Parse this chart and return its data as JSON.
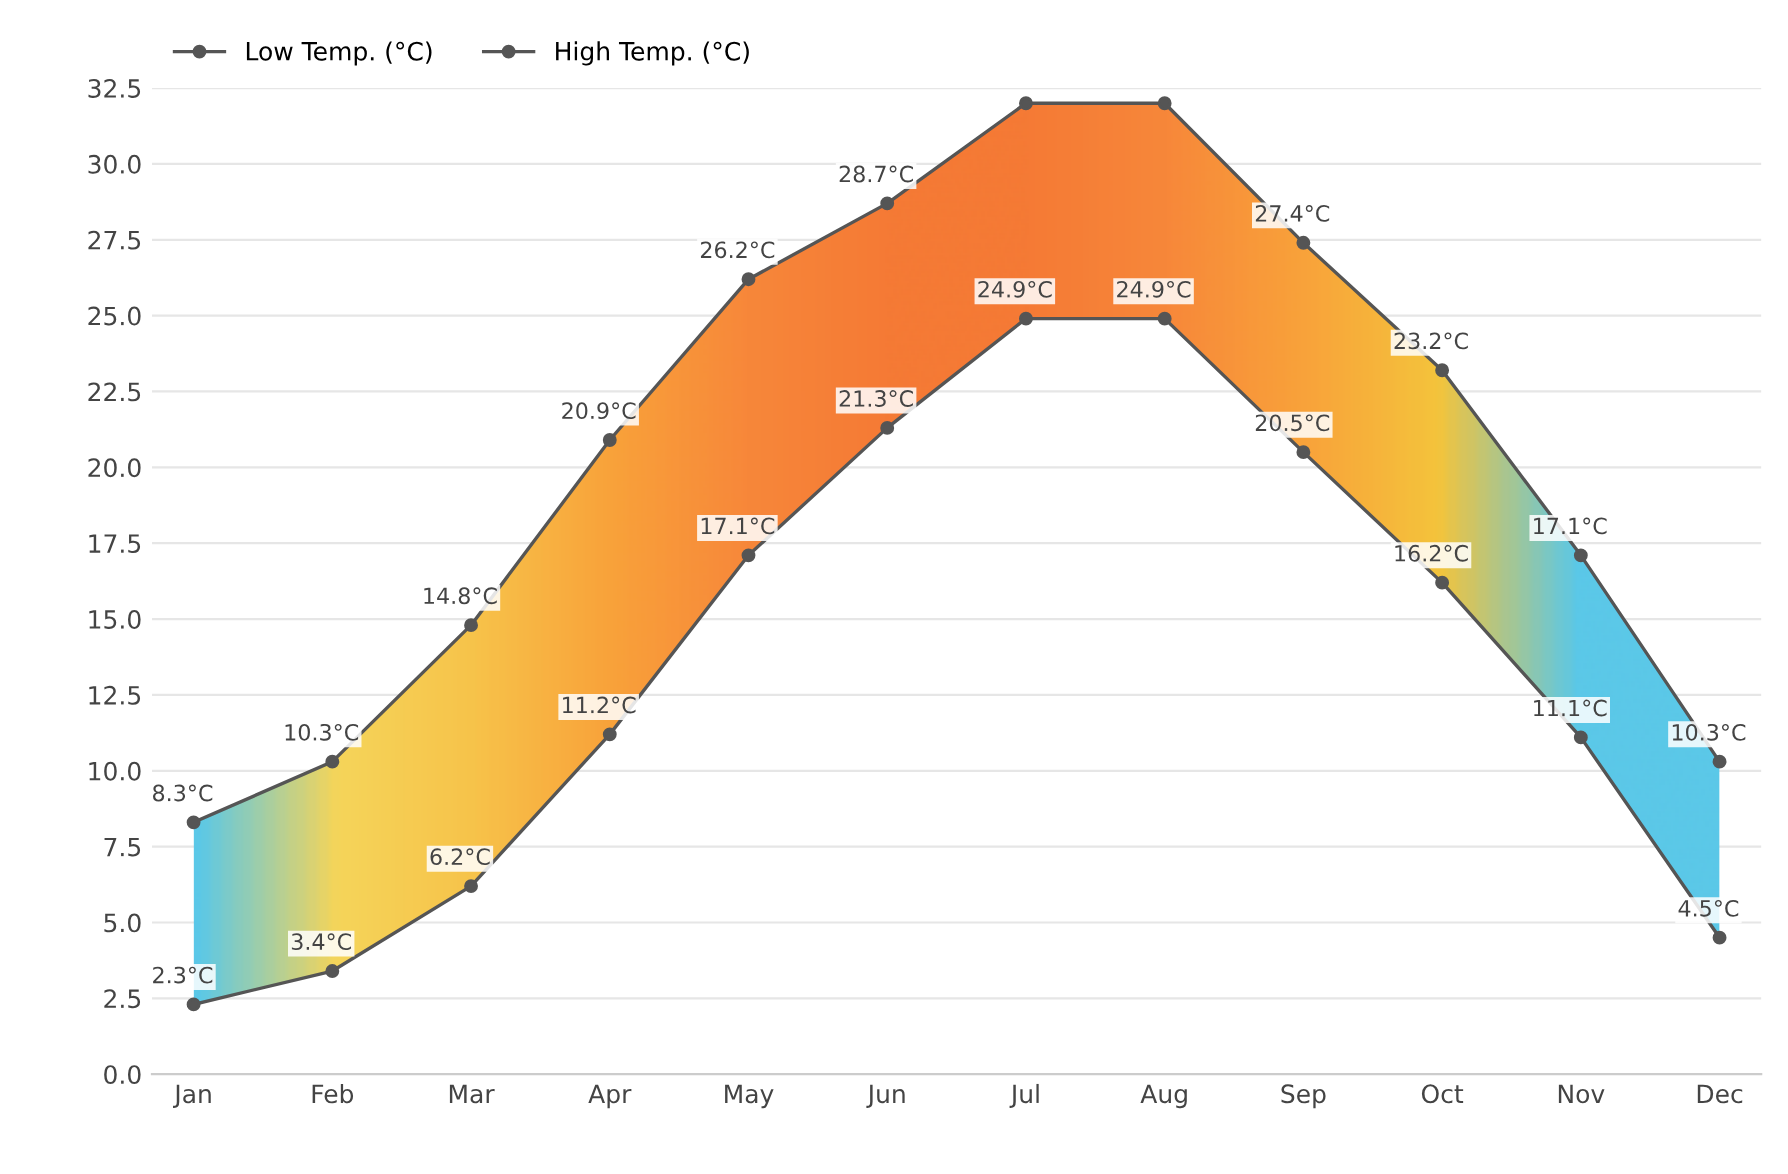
{
  "chart_data": {
    "type": "line",
    "categories": [
      "Jan",
      "Feb",
      "Mar",
      "Apr",
      "May",
      "Jun",
      "Jul",
      "Aug",
      "Sep",
      "Oct",
      "Nov",
      "Dec"
    ],
    "series": [
      {
        "name": "Low Temp. (°C)",
        "color": "#555555",
        "values": [
          2.3,
          3.4,
          6.2,
          11.2,
          17.1,
          21.3,
          24.9,
          24.9,
          20.5,
          16.2,
          11.1,
          4.5
        ],
        "value_labels": [
          "2.3°C",
          "3.4°C",
          "6.2°C",
          "11.2°C",
          "17.1°C",
          "21.3°C",
          "24.9°C",
          "24.9°C",
          "20.5°C",
          "16.2°C",
          "11.1°C",
          "4.5°C"
        ]
      },
      {
        "name": "High Temp. (°C)",
        "color": "#555555",
        "values": [
          8.3,
          10.3,
          14.8,
          20.9,
          26.2,
          28.7,
          32.0,
          32.0,
          27.4,
          23.2,
          17.1,
          10.3
        ],
        "value_labels": [
          "8.3°C",
          "10.3°C",
          "14.8°C",
          "20.9°C",
          "26.2°C",
          "28.7°C",
          null,
          null,
          "27.4°C",
          "23.2°C",
          "17.1°C",
          "10.3°C"
        ],
        "colors": [
          "#5bc8e8",
          "#f5d55a",
          "#f7c34a",
          "#f9a23a",
          "#f7873a",
          "#f57a35",
          "#f57a35",
          "#f7873a",
          "#f9a23a",
          "#f4c43c",
          "#5bc8e8",
          "#5bc8e8"
        ]
      }
    ],
    "ylim": [
      0,
      32.5
    ],
    "yticks": [
      {
        "value": 0,
        "label": "0.0"
      },
      {
        "value": 2.5,
        "label": "2.5"
      },
      {
        "value": 5,
        "label": "5.0"
      },
      {
        "value": 7.5,
        "label": "7.5"
      },
      {
        "value": 10,
        "label": "10.0"
      },
      {
        "value": 12.5,
        "label": "12.5"
      },
      {
        "value": 15,
        "label": "15.0"
      },
      {
        "value": 17.5,
        "label": "17.5"
      },
      {
        "value": 20,
        "label": "20.0"
      },
      {
        "value": 22.5,
        "label": "22.5"
      },
      {
        "value": 25,
        "label": "25.0"
      },
      {
        "value": 27.5,
        "label": "27.5"
      },
      {
        "value": 30,
        "label": "30.0"
      },
      {
        "value": 32.5,
        "label": "32.5"
      }
    ],
    "grid": "y",
    "legend": "top left",
    "marker": "circle",
    "line_style": "solid"
  }
}
